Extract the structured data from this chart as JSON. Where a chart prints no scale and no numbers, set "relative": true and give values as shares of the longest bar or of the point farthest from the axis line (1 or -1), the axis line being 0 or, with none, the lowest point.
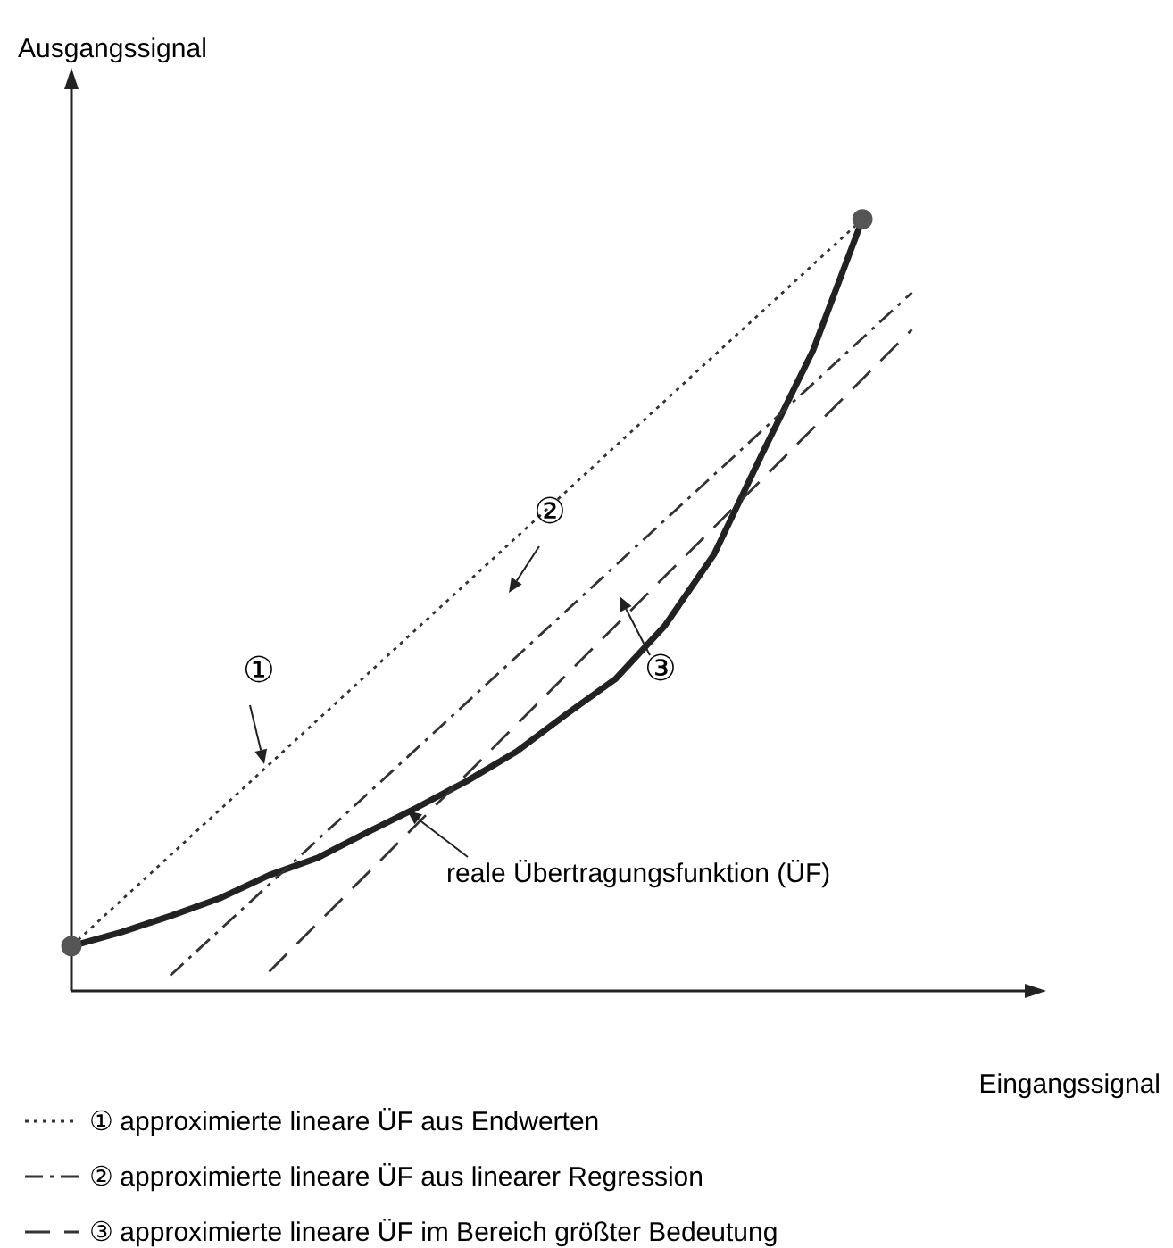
{
  "chart_data": {
    "type": "line",
    "relative": true,
    "xlabel": "Eingangssignal",
    "categories": [
      null,
      null,
      null,
      null,
      null,
      null,
      null,
      null,
      null,
      null,
      null,
      null,
      null,
      null,
      null,
      null,
      null,
      null,
      null,
      null
    ],
    "legend": "bottom",
    "grid": false,
    "annotations": [
      "①",
      "②",
      "③",
      "reale Übertragungsfunktion (ÜF)",
      "Ausgangssignal"
    ],
    "series": [
      {
        "color": "#222222",
        "line_style": "solid",
        "values": [
          0.058,
          0.076,
          0.097,
          0.12,
          0.15,
          0.173,
          0.206,
          0.238,
          0.272,
          0.31,
          0.358,
          0.404,
          0.473,
          0.566,
          0.7,
          0.83,
          1,
          null,
          null,
          null
        ]
      },
      {
        "name": "① approximierte lineare ÜF aus Endwerten",
        "color": "#333333",
        "line_style": "dotted",
        "marker": "circle",
        "values": [
          0.058,
          null,
          null,
          null,
          null,
          null,
          null,
          null,
          null,
          null,
          null,
          null,
          null,
          null,
          null,
          null,
          1,
          null,
          null,
          null
        ]
      },
      {
        "name": "② approximierte lineare ÜF aus linearer Regression",
        "color": "#333333",
        "line_style": "dashdot",
        "values": [
          null,
          null,
          0.02,
          null,
          null,
          null,
          null,
          null,
          null,
          null,
          null,
          null,
          null,
          null,
          null,
          null,
          null,
          0.905,
          null,
          null
        ]
      },
      {
        "name": "③ approximierte lineare ÜF im Bereich größter Bedeutung",
        "color": "#333333",
        "line_style": "dashed",
        "values": [
          null,
          null,
          null,
          null,
          0.025,
          null,
          null,
          null,
          null,
          null,
          null,
          null,
          null,
          null,
          null,
          null,
          null,
          0.857,
          null,
          null
        ]
      }
    ]
  }
}
